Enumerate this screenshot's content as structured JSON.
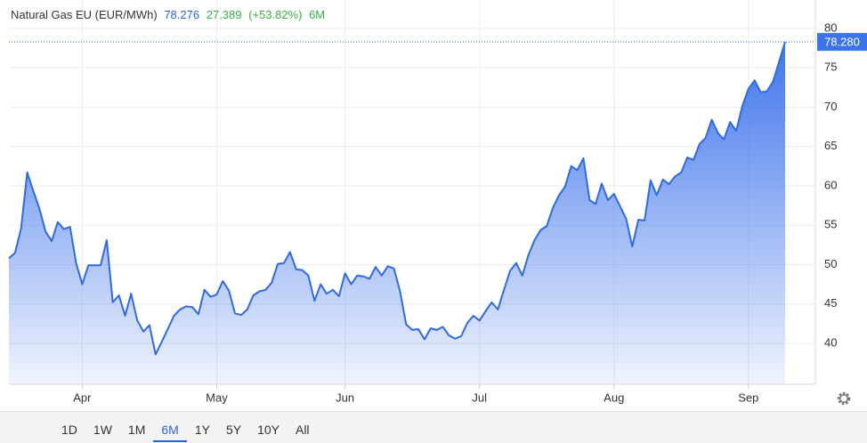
{
  "chart_data": {
    "type": "area",
    "title": "Natural Gas EU (EUR/MWh)",
    "last": "78.276",
    "change": "27.389",
    "change_pct": "(+53.82%)",
    "period": "6M",
    "last_price_label": "78.280",
    "color": "#2f6ae0",
    "categories": [
      null,
      null,
      null,
      null,
      null,
      null,
      null,
      null,
      null,
      null,
      null,
      null,
      "Apr",
      null,
      null,
      null,
      null,
      null,
      null,
      null,
      null,
      null,
      null,
      null,
      null,
      null,
      null,
      null,
      null,
      null,
      null,
      null,
      null,
      null,
      "May",
      null,
      null,
      null,
      null,
      null,
      null,
      null,
      null,
      null,
      null,
      null,
      null,
      null,
      null,
      null,
      null,
      null,
      null,
      null,
      null,
      "Jun",
      null,
      null,
      null,
      null,
      null,
      null,
      null,
      null,
      null,
      null,
      null,
      null,
      null,
      null,
      null,
      null,
      null,
      null,
      null,
      null,
      null,
      "Jul",
      null,
      null,
      null,
      null,
      null,
      null,
      null,
      null,
      null,
      null,
      null,
      null,
      null,
      null,
      null,
      null,
      null,
      null,
      null,
      null,
      null,
      "Aug",
      null,
      null,
      null,
      null,
      null,
      null,
      null,
      null,
      null,
      null,
      null,
      null,
      null,
      null,
      null,
      null,
      null,
      null,
      null,
      null,
      null,
      "Sep",
      null,
      null,
      null,
      null,
      null,
      null
    ],
    "values": [
      50.8,
      51.5,
      54.6,
      61.7,
      59.3,
      57.1,
      54.2,
      53.0,
      55.4,
      54.5,
      54.8,
      50.2,
      47.5,
      49.9,
      49.9,
      49.9,
      53.1,
      45.2,
      46.1,
      43.5,
      46.3,
      42.9,
      41.5,
      42.3,
      38.6,
      40.2,
      41.8,
      43.5,
      44.3,
      44.7,
      44.6,
      43.7,
      46.8,
      45.9,
      46.2,
      47.9,
      46.7,
      43.8,
      43.6,
      44.3,
      46.1,
      46.6,
      46.8,
      47.7,
      50.1,
      50.2,
      51.6,
      49.4,
      49.3,
      48.6,
      45.4,
      47.5,
      46.3,
      46.8,
      46.0,
      48.9,
      47.5,
      48.6,
      48.5,
      48.2,
      49.7,
      48.6,
      49.8,
      49.5,
      46.6,
      42.4,
      41.7,
      41.8,
      40.5,
      41.9,
      41.7,
      42.1,
      41.0,
      40.6,
      40.9,
      42.6,
      43.5,
      42.9,
      44.1,
      45.2,
      44.3,
      46.8,
      49.2,
      50.2,
      48.6,
      51.2,
      53.1,
      54.4,
      54.9,
      57.2,
      58.8,
      59.9,
      62.5,
      62.0,
      63.5,
      58.2,
      57.7,
      60.3,
      58.2,
      59.0,
      57.4,
      55.8,
      52.3,
      55.7,
      55.6,
      60.7,
      58.8,
      60.8,
      60.2,
      61.2,
      61.7,
      63.6,
      63.3,
      65.3,
      66.1,
      68.4,
      66.7,
      65.9,
      68.1,
      67.0,
      70.1,
      72.3,
      73.4,
      71.9,
      72.0,
      73.2,
      75.7,
      78.276
    ],
    "ylim": [
      34.8,
      83.6
    ],
    "yticks": [
      40,
      45,
      50,
      55,
      60,
      65,
      70,
      75,
      80
    ],
    "grid": true,
    "ranges": [
      "1D",
      "1W",
      "1M",
      "6M",
      "1Y",
      "5Y",
      "10Y",
      "All"
    ],
    "active_range": 3
  }
}
